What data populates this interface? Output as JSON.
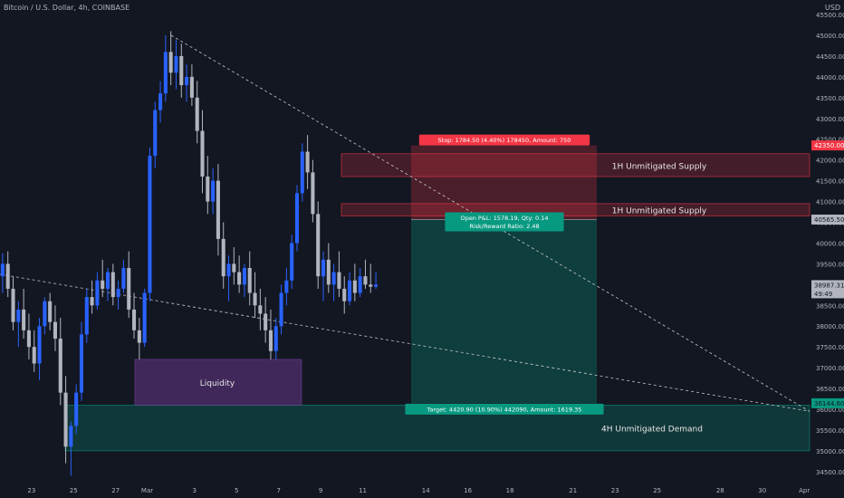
{
  "header": {
    "symbol_title": "Bitcoin / U.S. Dollar, 4h, COINBASE",
    "currency": "USD"
  },
  "colors": {
    "background": "#131722",
    "up": "#2962ff",
    "down": "#b2b5be",
    "axis_text": "#b2b5be",
    "supply_fill": "#f23645",
    "demand_fill": "#089981",
    "liquidity_fill": "#7b3fa0",
    "trend_line": "#c8c8c8",
    "price_label_bg": "#b2b5be",
    "stop_label_bg": "#f23645",
    "target_label_bg": "#089981"
  },
  "chart_data": {
    "type": "candlestick",
    "ylim": [
      34300,
      45850
    ],
    "yticks": [
      34500,
      35000,
      35500,
      36000,
      36500,
      37000,
      37500,
      38000,
      38500,
      39000,
      39500,
      40000,
      40500,
      41000,
      41500,
      42000,
      42500,
      43000,
      43500,
      44000,
      44500,
      45000,
      45500
    ],
    "xlim": [
      0,
      154
    ],
    "xticks": [
      {
        "label": "23",
        "x": 6
      },
      {
        "label": "25",
        "x": 14
      },
      {
        "label": "27",
        "x": 22
      },
      {
        "label": "Mar",
        "x": 28
      },
      {
        "label": "3",
        "x": 37
      },
      {
        "label": "5",
        "x": 45
      },
      {
        "label": "7",
        "x": 53
      },
      {
        "label": "9",
        "x": 61
      },
      {
        "label": "11",
        "x": 69
      },
      {
        "label": "14",
        "x": 81
      },
      {
        "label": "16",
        "x": 89
      },
      {
        "label": "18",
        "x": 97
      },
      {
        "label": "21",
        "x": 109
      },
      {
        "label": "23",
        "x": 117
      },
      {
        "label": "25",
        "x": 125
      },
      {
        "label": "28",
        "x": 137
      },
      {
        "label": "30",
        "x": 145
      },
      {
        "label": "Apr",
        "x": 153
      }
    ],
    "candles": [
      [
        39200,
        39750,
        38800,
        39500
      ],
      [
        39500,
        39800,
        38700,
        38900
      ],
      [
        38900,
        39200,
        37900,
        38100
      ],
      [
        38100,
        38600,
        37500,
        38400
      ],
      [
        38400,
        38900,
        37700,
        37900
      ],
      [
        37900,
        38300,
        37200,
        37500
      ],
      [
        37500,
        37900,
        36900,
        37100
      ],
      [
        37100,
        38200,
        36700,
        38000
      ],
      [
        38000,
        38700,
        37800,
        38600
      ],
      [
        38600,
        38800,
        37900,
        38100
      ],
      [
        38100,
        38500,
        37400,
        37700
      ],
      [
        37700,
        38200,
        36100,
        36400
      ],
      [
        36400,
        36800,
        34700,
        35100
      ],
      [
        35100,
        35700,
        34400,
        35600
      ],
      [
        35600,
        36600,
        35400,
        36400
      ],
      [
        36400,
        38100,
        36200,
        37800
      ],
      [
        37800,
        38900,
        37600,
        38700
      ],
      [
        38700,
        39100,
        38300,
        38500
      ],
      [
        38500,
        39300,
        38400,
        39100
      ],
      [
        39100,
        39600,
        38700,
        38900
      ],
      [
        38900,
        39400,
        38600,
        39300
      ],
      [
        39300,
        39500,
        38500,
        38700
      ],
      [
        38700,
        39100,
        38400,
        38900
      ],
      [
        38900,
        39600,
        38800,
        39400
      ],
      [
        39400,
        39800,
        38200,
        38400
      ],
      [
        38400,
        38800,
        37700,
        37900
      ],
      [
        37900,
        38200,
        37200,
        37600
      ],
      [
        37600,
        38900,
        37500,
        38800
      ],
      [
        38800,
        42300,
        38600,
        42100
      ],
      [
        42100,
        43400,
        41800,
        43200
      ],
      [
        43200,
        43900,
        42900,
        43600
      ],
      [
        43600,
        45000,
        43400,
        44600
      ],
      [
        44600,
        45100,
        43800,
        44100
      ],
      [
        44100,
        44900,
        43700,
        44500
      ],
      [
        44500,
        44800,
        43500,
        43800
      ],
      [
        43800,
        44300,
        43400,
        44000
      ],
      [
        44000,
        44300,
        43300,
        43500
      ],
      [
        43500,
        43900,
        42400,
        42700
      ],
      [
        42700,
        43200,
        41200,
        41600
      ],
      [
        41600,
        42100,
        40700,
        41000
      ],
      [
        41000,
        41800,
        40700,
        41500
      ],
      [
        41500,
        41900,
        39700,
        40100
      ],
      [
        40100,
        40500,
        38900,
        39200
      ],
      [
        39200,
        39700,
        38600,
        39500
      ],
      [
        39500,
        39900,
        39000,
        39300
      ],
      [
        39300,
        39700,
        38800,
        39000
      ],
      [
        39000,
        39500,
        38700,
        39400
      ],
      [
        39400,
        39800,
        38500,
        38800
      ],
      [
        38800,
        39300,
        38200,
        38500
      ],
      [
        38500,
        38900,
        37900,
        38300
      ],
      [
        38300,
        38700,
        37600,
        37900
      ],
      [
        37900,
        38400,
        37200,
        37400
      ],
      [
        37400,
        38200,
        37200,
        38000
      ],
      [
        38000,
        39000,
        37800,
        38800
      ],
      [
        38800,
        39400,
        38500,
        39100
      ],
      [
        39100,
        40200,
        38900,
        40000
      ],
      [
        40000,
        41400,
        39800,
        41200
      ],
      [
        41200,
        42400,
        41000,
        42200
      ],
      [
        42200,
        42600,
        41300,
        41700
      ],
      [
        41700,
        42000,
        40500,
        40700
      ],
      [
        40700,
        41000,
        38900,
        39200
      ],
      [
        39200,
        39800,
        38600,
        39600
      ],
      [
        39600,
        40000,
        38800,
        39000
      ],
      [
        39000,
        39500,
        38600,
        39300
      ],
      [
        39300,
        39800,
        38700,
        38900
      ],
      [
        38900,
        39200,
        38300,
        38600
      ],
      [
        38600,
        39300,
        38500,
        39100
      ],
      [
        39100,
        39500,
        38600,
        38800
      ],
      [
        38800,
        39400,
        38700,
        39200
      ],
      [
        39200,
        39600,
        38900,
        39000
      ],
      [
        39000,
        39500,
        38800,
        38950
      ],
      [
        38950,
        39300,
        38900,
        39000
      ]
    ],
    "zones": [
      {
        "label": "1H Unmitigated Supply",
        "from": 41600,
        "to": 42150
      },
      {
        "label": "1H Unmitigated Supply",
        "from": 40650,
        "to": 40950
      },
      {
        "label": "4H Unmitigated Demand",
        "from": 35000,
        "to": 36100
      },
      {
        "label": "Liquidity",
        "from": 36100,
        "to": 37200
      }
    ],
    "position": {
      "entry": 40565.5,
      "stop": 42350.0,
      "target": 36144.6,
      "stop_label": "Stop: 1784.50 (4.40%) 178450, Amount: 750",
      "pnl_label": "Open P&L: 1578.19, Qty: 0.14",
      "rr_label": "Risk/Reward Ratio: 2.48",
      "target_label": "Target: 4420.90 (10.90%) 442090, Amount: 1619.35"
    },
    "price_labels": [
      {
        "text": "42350.00",
        "value": 42350,
        "kind": "stop"
      },
      {
        "text": "40565.50",
        "value": 40565.5,
        "kind": "entry"
      },
      {
        "text": "38987.31",
        "value": 38987.31,
        "kind": "last"
      },
      {
        "text": "36144.60",
        "value": 36144.6,
        "kind": "target"
      }
    ],
    "countdown": "49:49"
  }
}
